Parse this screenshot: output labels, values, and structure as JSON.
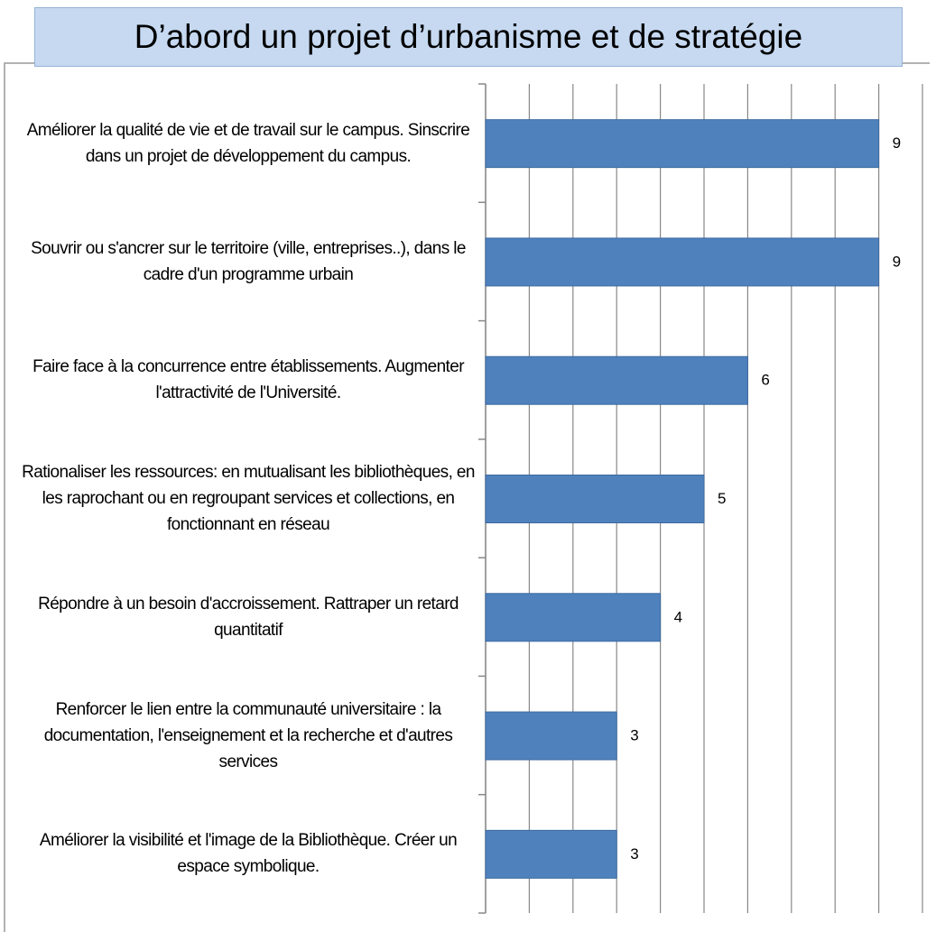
{
  "chart_data": {
    "type": "hbar",
    "title": "D’abord un projet d’urbanisme et de stratégie",
    "categories": [
      "Améliorer la qualité de vie et de travail sur le campus. Sinscrire dans un projet de développement du campus.",
      "Souvrir ou s'ancrer sur le territoire (ville, entreprises..), dans le cadre d'un programme urbain",
      "Faire face à la concurrence entre établissements. Augmenter l'attractivité de l'Université.",
      "Rationaliser les ressources: en mutualisant les bibliothèques, en les raprochant ou en regroupant services et collections, en fonctionnant en réseau",
      "Répondre à un besoin d'accroissement. Rattraper un retard quantitatif",
      "Renforcer le lien entre la communauté universitaire : la documentation, l'enseignement et la recherche et d'autres services",
      "Améliorer la visibilité et l'image de la Bibliothèque. Créer un espace symbolique."
    ],
    "values": [
      9,
      9,
      6,
      5,
      4,
      3,
      3
    ],
    "color": "#4f81bd",
    "xlim": [
      0,
      10
    ],
    "xticks": [
      0,
      1,
      2,
      3,
      4,
      5,
      6,
      7,
      8,
      9,
      10
    ],
    "grid": true
  }
}
